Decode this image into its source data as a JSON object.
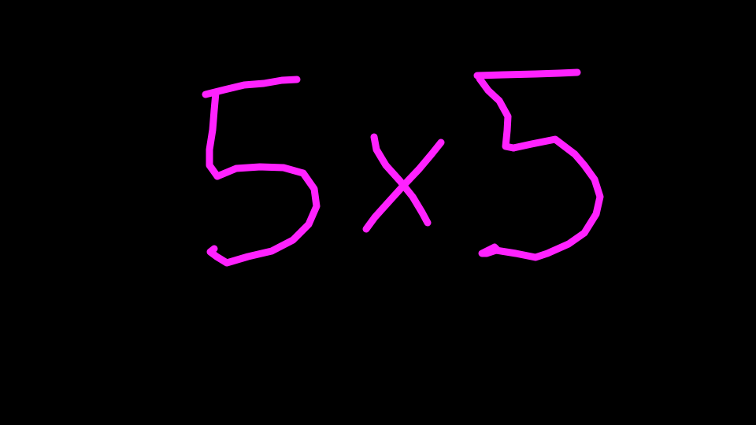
{
  "drawing": {
    "expression": "5x5",
    "glyphs": [
      {
        "char": "5",
        "name": "digit-five-left"
      },
      {
        "char": "x",
        "name": "multiplication-x"
      },
      {
        "char": "5",
        "name": "digit-five-right"
      }
    ],
    "ink_color": "#ff22ff",
    "background_color": "#000000"
  }
}
